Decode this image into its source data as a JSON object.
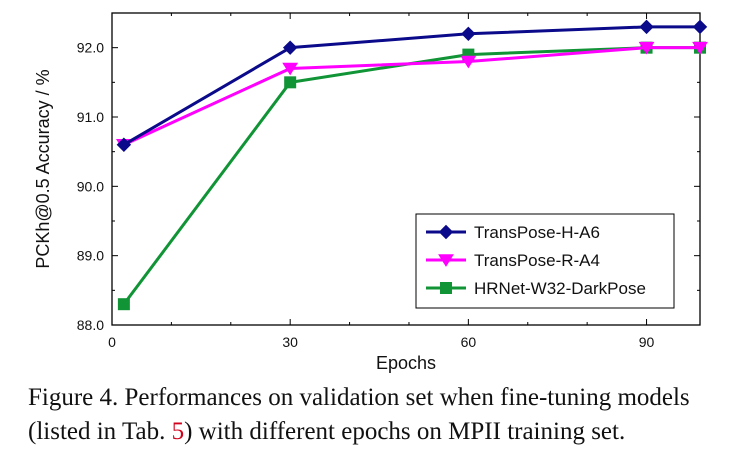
{
  "chart_data": {
    "type": "line",
    "title": "",
    "xlabel": "Epochs",
    "ylabel": "PCKh@0.5 Accuracy / %",
    "xlim": [
      0,
      99
    ],
    "ylim": [
      88.0,
      92.5
    ],
    "xticks": [
      0,
      30,
      60,
      90
    ],
    "xtick_labels": [
      "0",
      "30",
      "60",
      "90"
    ],
    "yticks": [
      88.0,
      89.0,
      90.0,
      91.0,
      92.0
    ],
    "ytick_labels": [
      "88.0",
      "89.0",
      "90.0",
      "91.0",
      "92.0"
    ],
    "grid": false,
    "legend_position": "bottom-right",
    "x": [
      2,
      30,
      60,
      90,
      99
    ],
    "series": [
      {
        "name": "TransPose-H-A6",
        "color": "#0a0a8a",
        "marker": "diamond",
        "values": [
          90.6,
          92.0,
          92.2,
          92.3,
          92.3
        ]
      },
      {
        "name": "TransPose-R-A4",
        "color": "#ff00ff",
        "marker": "triangle-down",
        "values": [
          90.6,
          91.7,
          91.8,
          92.0,
          92.0
        ]
      },
      {
        "name": "HRNet-W32-DarkPose",
        "color": "#119436",
        "marker": "square",
        "values": [
          88.3,
          91.5,
          91.9,
          92.0,
          92.0
        ]
      }
    ]
  },
  "caption": {
    "line1": "Figure 4. Performances on validation set when fine-tuning models",
    "line2_pre": "(listed in Tab. ",
    "line2_ref": "5",
    "line2_post": ") with different epochs on MPII training set."
  }
}
